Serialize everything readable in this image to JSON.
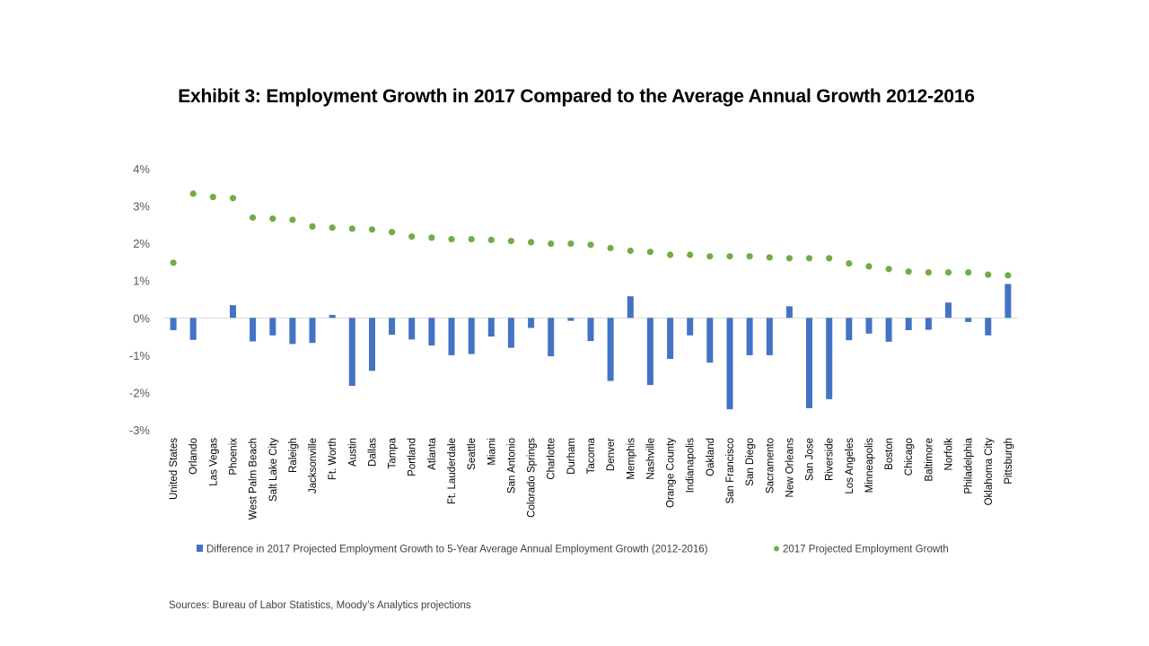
{
  "chart_data": {
    "type": "bar+scatter",
    "title": "Exhibit 3: Employment Growth in 2017 Compared to the Average Annual Growth 2012-2016",
    "ylim": [
      -3,
      4
    ],
    "yticks": [
      4,
      3,
      2,
      1,
      0,
      -1,
      -2,
      -3
    ],
    "ytick_labels": [
      "4%",
      "3%",
      "2%",
      "1%",
      "0%",
      "-1%",
      "-2%",
      "-3%"
    ],
    "xlabel": "",
    "ylabel": "",
    "legend_position": "bottom",
    "categories": [
      "United States",
      "Orlando",
      "Las Vegas",
      "Phoenix",
      "West Palm Beach",
      "Salt Lake City",
      "Raleigh",
      "Jacksonville",
      "Ft. Worth",
      "Austin",
      "Dallas",
      "Tampa",
      "Portland",
      "Atlanta",
      "Ft. Lauderdale",
      "Seattle",
      "Miami",
      "San Antonio",
      "Colorado Springs",
      "Charlotte",
      "Durham",
      "Tacoma",
      "Denver",
      "Memphis",
      "Nashville",
      "Orange County",
      "Indianapolis",
      "Oakland",
      "San Francisco",
      "San Diego",
      "Sacramento",
      "New Orleans",
      "San Jose",
      "Riverside",
      "Los Angeles",
      "Minneapolis",
      "Boston",
      "Chicago",
      "Baltimore",
      "Norfolk",
      "Philadelphia",
      "Oklahoma City",
      "Pittsburgh"
    ],
    "series": [
      {
        "name": "Difference in 2017 Projected Employment Growth to 5-Year Average Annual Employment Growth (2012-2016)",
        "type": "bar",
        "color": "#4472C4",
        "values": [
          -0.33,
          -0.59,
          0.0,
          0.34,
          -0.63,
          -0.47,
          -0.7,
          -0.67,
          0.08,
          -1.82,
          -1.42,
          -0.45,
          -0.58,
          -0.74,
          -1.0,
          -0.97,
          -0.5,
          -0.8,
          -0.27,
          -1.03,
          -0.08,
          -0.62,
          -1.69,
          0.58,
          -1.8,
          -1.1,
          -0.47,
          -1.2,
          -2.45,
          -1.0,
          -1.0,
          0.31,
          -2.42,
          -2.18,
          -0.6,
          -0.42,
          -0.64,
          -0.33,
          -0.32,
          0.41,
          -0.11,
          -0.47,
          0.91
        ]
      },
      {
        "name": "2017 Projected Employment Growth",
        "type": "scatter",
        "color": "#70AD47",
        "values": [
          1.48,
          3.33,
          3.24,
          3.21,
          2.69,
          2.66,
          2.63,
          2.45,
          2.42,
          2.39,
          2.37,
          2.3,
          2.18,
          2.15,
          2.11,
          2.11,
          2.09,
          2.06,
          2.03,
          1.99,
          1.99,
          1.96,
          1.87,
          1.8,
          1.77,
          1.69,
          1.69,
          1.65,
          1.65,
          1.65,
          1.62,
          1.6,
          1.6,
          1.6,
          1.46,
          1.38,
          1.31,
          1.24,
          1.22,
          1.22,
          1.22,
          1.16,
          1.14
        ]
      }
    ]
  },
  "source": "Sources: Bureau of Labor Statistics, Moody’s Analytics projections"
}
